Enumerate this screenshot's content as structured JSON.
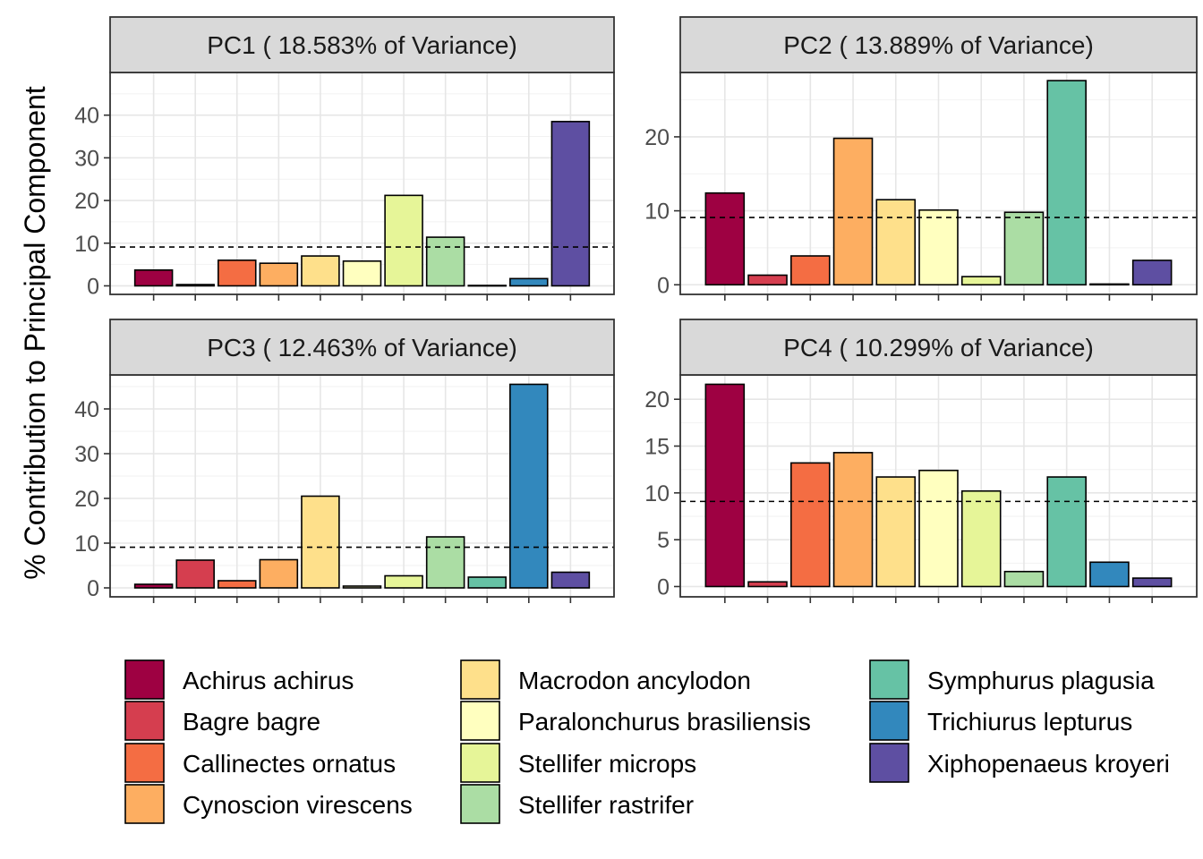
{
  "chart_data": {
    "type": "bar",
    "ylabel": "% Contribution to Principal Component",
    "reference_line": 9.09,
    "categories": [
      "Achirus achirus",
      "Bagre bagre",
      "Callinectes ornatus",
      "Cynoscion virescens",
      "Macrodon ancylodon",
      "Paralonchurus brasiliensis",
      "Stellifer microps",
      "Stellifer rastrifer",
      "Symphurus plagusia",
      "Trichiurus lepturus",
      "Xiphopenaeus kroyeri"
    ],
    "colors": [
      "#9E0142",
      "#D53E4F",
      "#F46D43",
      "#FDAE61",
      "#FEE08B",
      "#FFFFBF",
      "#E6F598",
      "#ABDDA4",
      "#66C2A5",
      "#3288BD",
      "#5E4FA2"
    ],
    "panels": [
      {
        "title": "PC1 ( 18.583% of Variance)",
        "ylim": [
          -2,
          50
        ],
        "yticks": [
          "0",
          "10",
          "20",
          "30",
          "40"
        ],
        "values": [
          3.7,
          0.3,
          6.0,
          5.3,
          7.0,
          5.8,
          21.2,
          11.4,
          0.1,
          1.7,
          38.5
        ]
      },
      {
        "title": "PC2 ( 13.889% of Variance)",
        "ylim": [
          -1.3,
          28.7
        ],
        "yticks": [
          "0",
          "10",
          "20"
        ],
        "values": [
          12.4,
          1.3,
          3.9,
          19.8,
          11.5,
          10.1,
          1.1,
          9.8,
          27.6,
          0.1,
          3.3
        ]
      },
      {
        "title": "PC3 ( 12.463% of Variance)",
        "ylim": [
          -2,
          47.6
        ],
        "yticks": [
          "0",
          "10",
          "20",
          "30",
          "40"
        ],
        "values": [
          0.8,
          6.2,
          1.6,
          6.3,
          20.5,
          0.4,
          2.7,
          11.4,
          2.4,
          45.5,
          3.5
        ]
      },
      {
        "title": "PC4 ( 10.299% of Variance)",
        "ylim": [
          -1.1,
          22.6
        ],
        "yticks": [
          "0",
          "5",
          "10",
          "15",
          "20"
        ],
        "values": [
          21.6,
          0.5,
          13.2,
          14.3,
          11.7,
          12.4,
          10.2,
          1.6,
          11.7,
          2.6,
          0.9
        ]
      }
    ],
    "legend": {
      "placement": "bottom",
      "items": [
        "Achirus achirus",
        "Bagre bagre",
        "Callinectes ornatus",
        "Cynoscion virescens",
        "Macrodon ancylodon",
        "Paralonchurus brasiliensis",
        "Stellifer microps",
        "Stellifer rastrifer",
        "Symphurus plagusia",
        "Trichiurus lepturus",
        "Xiphopenaeus kroyeri"
      ]
    },
    "grid": true
  }
}
